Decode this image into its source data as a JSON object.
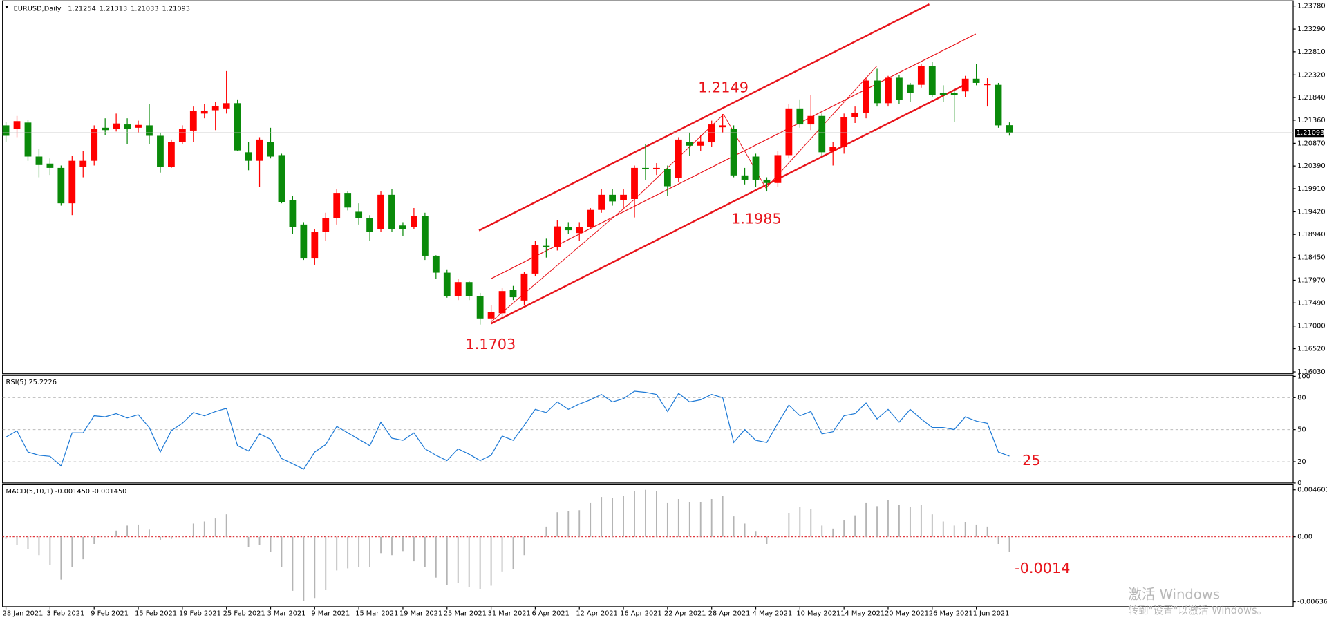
{
  "chart_data": [
    {
      "type": "candlestick",
      "title": "EURUSD,Daily",
      "categories": [
        "28 Jan 2021",
        null,
        null,
        null,
        "3 Feb 2021",
        null,
        null,
        null,
        "9 Feb 2021",
        null,
        null,
        null,
        "15 Feb 2021",
        null,
        null,
        null,
        "19 Feb 2021",
        null,
        null,
        null,
        "25 Feb 2021",
        null,
        null,
        null,
        "3 Mar 2021",
        null,
        null,
        null,
        "9 Mar 2021",
        null,
        null,
        null,
        "15 Mar 2021",
        null,
        null,
        null,
        "19 Mar 2021",
        null,
        null,
        null,
        "25 Mar 2021",
        null,
        null,
        null,
        "31 Mar 2021",
        null,
        null,
        null,
        "6 Apr 2021",
        null,
        null,
        null,
        "12 Apr 2021",
        null,
        null,
        null,
        "16 Apr 2021",
        null,
        null,
        null,
        "22 Apr 2021",
        null,
        null,
        null,
        "28 Apr 2021",
        null,
        null,
        null,
        "4 May 2021",
        null,
        null,
        null,
        "10 May 2021",
        null,
        null,
        null,
        "14 May 2021",
        null,
        null,
        null,
        "20 May 2021",
        null,
        null,
        null,
        "26 May 2021",
        null,
        null,
        null,
        "1 Jun 2021",
        null,
        null,
        null
      ],
      "open": [
        1.2125,
        1.2118,
        1.2131,
        1.2059,
        1.2044,
        1.2035,
        1.196,
        1.2037,
        1.205,
        1.212,
        1.2118,
        1.2127,
        1.212,
        1.2125,
        1.2103,
        1.2037,
        1.209,
        1.2114,
        1.215,
        1.2157,
        1.2161,
        1.2172,
        1.2068,
        1.205,
        1.209,
        1.2062,
        1.1967,
        1.1915,
        1.1843,
        1.19,
        1.1928,
        1.1982,
        1.1942,
        1.1928,
        1.1906,
        1.1978,
        1.1913,
        1.191,
        1.1933,
        1.1849,
        1.1813,
        1.1763,
        1.1793,
        1.1763,
        1.1716,
        1.1727,
        1.1777,
        1.1754,
        1.1811,
        1.187,
        1.1867,
        1.191,
        1.1897,
        1.191,
        1.1946,
        1.1978,
        1.1967,
        1.1969,
        1.2035,
        1.2032,
        1.2032,
        1.2014,
        1.209,
        1.2082,
        1.2089,
        1.2121,
        1.2118,
        1.2019,
        1.2059,
        1.201,
        1.2003,
        1.2062,
        1.2161,
        1.2127,
        1.2145,
        1.2071,
        1.208,
        1.2143,
        1.2152,
        1.222,
        1.2172,
        1.2226,
        1.2211,
        1.2211,
        1.2251,
        1.2193,
        1.2193,
        1.2197,
        1.2224,
        1.2211,
        1.2211,
        1.21254
      ],
      "high": [
        1.2133,
        1.2145,
        1.2136,
        1.2075,
        1.2055,
        1.204,
        1.206,
        1.207,
        1.2125,
        1.214,
        1.215,
        1.214,
        1.2135,
        1.217,
        1.211,
        1.2095,
        1.2125,
        1.2165,
        1.217,
        1.2175,
        1.224,
        1.218,
        1.209,
        1.21,
        1.212,
        1.2065,
        1.1975,
        1.192,
        1.1905,
        1.194,
        1.199,
        1.1985,
        1.196,
        1.1935,
        1.1985,
        1.199,
        1.192,
        1.195,
        1.194,
        1.185,
        1.182,
        1.18,
        1.1795,
        1.177,
        1.1745,
        1.178,
        1.1785,
        1.1815,
        1.188,
        1.1885,
        1.1925,
        1.192,
        1.192,
        1.195,
        1.199,
        1.199,
        1.199,
        1.204,
        1.2085,
        1.2045,
        1.204,
        1.21,
        1.211,
        1.2105,
        1.2135,
        1.2149,
        1.2125,
        1.2035,
        1.2065,
        1.2015,
        1.207,
        1.217,
        1.218,
        1.219,
        1.215,
        1.209,
        1.215,
        1.2165,
        1.2225,
        1.2245,
        1.223,
        1.2232,
        1.2215,
        1.2255,
        1.226,
        1.221,
        1.22,
        1.223,
        1.2255,
        1.2225,
        1.2215,
        1.21313
      ],
      "low": [
        1.209,
        1.21,
        1.205,
        1.2015,
        1.202,
        1.1955,
        1.1935,
        1.2015,
        1.204,
        1.2105,
        1.2112,
        1.2085,
        1.211,
        1.2085,
        1.2025,
        1.2035,
        1.2085,
        1.209,
        1.214,
        1.2115,
        1.215,
        1.207,
        1.203,
        1.1995,
        1.2055,
        1.196,
        1.1895,
        1.184,
        1.183,
        1.188,
        1.1915,
        1.1945,
        1.1915,
        1.188,
        1.19,
        1.19,
        1.189,
        1.1905,
        1.184,
        1.18,
        1.176,
        1.1755,
        1.1755,
        1.1703,
        1.1705,
        1.172,
        1.1755,
        1.1745,
        1.1805,
        1.1845,
        1.186,
        1.1895,
        1.188,
        1.1905,
        1.194,
        1.1955,
        1.195,
        1.193,
        1.201,
        1.202,
        1.1975,
        1.2005,
        1.206,
        1.207,
        1.208,
        1.211,
        1.2015,
        1.2,
        1.1995,
        1.1985,
        1.1995,
        1.2055,
        1.212,
        1.2115,
        1.206,
        1.204,
        1.2065,
        1.213,
        1.214,
        1.2165,
        1.2165,
        1.217,
        1.2175,
        1.2205,
        1.2185,
        1.2175,
        1.2133,
        1.2185,
        1.221,
        1.2165,
        1.212,
        1.21033
      ],
      "close": [
        1.2103,
        1.2134,
        1.2059,
        1.2041,
        1.2035,
        1.196,
        1.205,
        1.205,
        1.2118,
        1.2115,
        1.2129,
        1.2118,
        1.2126,
        1.2103,
        1.2037,
        1.209,
        1.2118,
        1.2155,
        1.2155,
        1.2166,
        1.2172,
        1.2072,
        1.205,
        1.2095,
        1.2059,
        1.1962,
        1.191,
        1.1843,
        1.19,
        1.1928,
        1.1982,
        1.1951,
        1.1928,
        1.19,
        1.1978,
        1.1906,
        1.1906,
        1.1933,
        1.1849,
        1.1813,
        1.1763,
        1.1793,
        1.1763,
        1.1716,
        1.1729,
        1.1774,
        1.1761,
        1.1811,
        1.1872,
        1.1867,
        1.1911,
        1.1903,
        1.191,
        1.1946,
        1.1978,
        1.1964,
        1.1978,
        1.2035,
        1.2032,
        1.2035,
        1.1996,
        1.2095,
        1.2082,
        1.2091,
        1.2127,
        1.2125,
        1.2019,
        1.201,
        1.201,
        1.2003,
        1.2062,
        1.2161,
        1.2127,
        1.2145,
        1.2068,
        1.208,
        1.2143,
        1.2152,
        1.222,
        1.2172,
        1.2226,
        1.2179,
        1.2193,
        1.2251,
        1.219,
        1.219,
        1.219,
        1.2224,
        1.2215,
        1.2212,
        1.2125,
        1.21093
      ],
      "up_color": "#ff0000",
      "down_color": "#0a8a0a",
      "ylim": [
        1.1599,
        1.2387
      ],
      "yticks": [
        {
          "value": 1.2378,
          "label": "1.23780"
        },
        {
          "value": 1.2329,
          "label": "1.23290"
        },
        {
          "value": 1.2281,
          "label": "1.22810"
        },
        {
          "value": 1.2232,
          "label": "1.22320"
        },
        {
          "value": 1.2184,
          "label": "1.21840"
        },
        {
          "value": 1.2136,
          "label": "1.21360"
        },
        {
          "value": 1.2087,
          "label": "1.20870"
        },
        {
          "value": 1.2039,
          "label": "1.20390"
        },
        {
          "value": 1.1991,
          "label": "1.19910"
        },
        {
          "value": 1.1942,
          "label": "1.19420"
        },
        {
          "value": 1.1894,
          "label": "1.18940"
        },
        {
          "value": 1.1845,
          "label": "1.18450"
        },
        {
          "value": 1.1797,
          "label": "1.17970"
        },
        {
          "value": 1.1749,
          "label": "1.17490"
        },
        {
          "value": 1.17,
          "label": "1.17000"
        },
        {
          "value": 1.1652,
          "label": "1.16520"
        },
        {
          "value": 1.1603,
          "label": "1.16030"
        }
      ],
      "annotations": [
        "1.2149",
        "1.1985",
        "1.1703"
      ]
    },
    {
      "type": "line",
      "title": "RSI(5) 25.2226",
      "color": "#1e7ad6",
      "values": [
        43,
        49,
        29,
        26,
        25,
        16,
        47,
        47,
        63,
        62,
        65,
        61,
        64,
        52,
        29,
        49,
        56,
        66,
        63,
        67,
        70,
        35,
        30,
        46,
        41,
        23,
        18,
        13,
        29,
        36,
        53,
        47,
        41,
        35,
        57,
        42,
        40,
        47,
        32,
        26,
        21,
        32,
        27,
        21,
        26,
        44,
        40,
        54,
        69,
        66,
        76,
        69,
        74,
        78,
        83,
        76,
        79,
        86,
        85,
        83,
        67,
        84,
        76,
        78,
        83,
        80,
        38,
        50,
        40,
        38,
        56,
        73,
        63,
        67,
        46,
        48,
        63,
        65,
        75,
        60,
        69,
        57,
        69,
        60,
        52,
        52,
        50,
        62,
        58,
        56,
        29,
        25.2226
      ],
      "ylim": [
        0,
        100
      ],
      "yticks": [
        0,
        20,
        50,
        80,
        100
      ],
      "annotations": [
        "25"
      ]
    },
    {
      "type": "histogram",
      "title": "MACD(5,10,1) -0.001450 -0.001450",
      "color": "#b4b4b4",
      "zero_line_color": "#e0393e",
      "values": [
        -0.0002,
        -0.0008,
        -0.0012,
        -0.0018,
        -0.0028,
        -0.0042,
        -0.003,
        -0.0022,
        -0.0007,
        0.0001,
        0.0006,
        0.0011,
        0.0012,
        0.0007,
        -0.0003,
        -0.0002,
        0.0001,
        0.0013,
        0.0015,
        0.0018,
        0.0022,
        0.0001,
        -0.001,
        -0.0008,
        -0.0015,
        -0.003,
        -0.0053,
        -0.0063,
        -0.006,
        -0.0052,
        -0.0033,
        -0.0031,
        -0.003,
        -0.003,
        -0.0016,
        -0.0018,
        -0.0014,
        -0.0024,
        -0.003,
        -0.004,
        -0.0047,
        -0.0045,
        -0.0049,
        -0.0051,
        -0.0048,
        -0.0034,
        -0.0032,
        -0.0018,
        5e-05,
        0.001,
        0.0024,
        0.0025,
        0.0026,
        0.0033,
        0.0039,
        0.0038,
        0.004,
        0.0045,
        0.0046,
        0.0045,
        0.0033,
        0.0037,
        0.0034,
        0.0034,
        0.0037,
        0.004,
        0.002,
        0.0013,
        0.0005,
        -0.0007,
        -0.0001,
        0.0023,
        0.0029,
        0.0027,
        0.0011,
        0.0008,
        0.0016,
        0.0021,
        0.0033,
        0.003,
        0.0036,
        0.0031,
        0.0029,
        0.0031,
        0.0022,
        0.0015,
        0.0011,
        0.0014,
        0.0012,
        0.001,
        -0.0007,
        -0.00145
      ],
      "ylim": [
        -0.006361,
        0.004601
      ],
      "yticks": [
        -0.006361,
        {
          "value": 0,
          "label": "0.00"
        },
        0.004601
      ],
      "annotations": [
        "-0.0014"
      ]
    }
  ],
  "watermark": {
    "title": "激活 Windows",
    "subtitle": "转到\"设置\"以激活 Windows。"
  }
}
